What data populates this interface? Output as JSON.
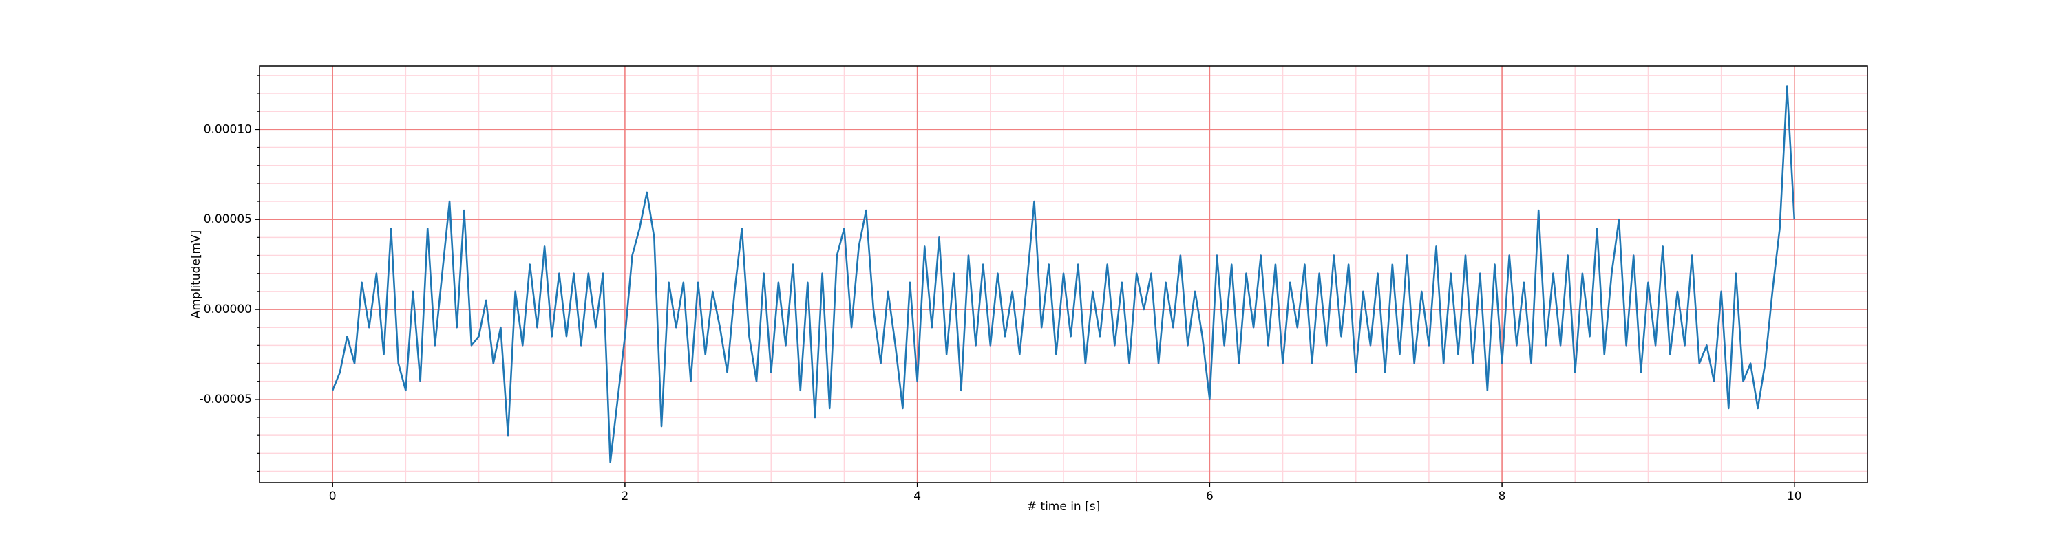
{
  "chart_data": {
    "type": "line",
    "xlabel": "# time in [s]",
    "ylabel": "Amplitude[mV]",
    "color": "#1f77b4",
    "grid": true,
    "grid_color": "#f08080",
    "minor_grid": true,
    "minor_grid_color": "#ffd6dd",
    "xlim": [
      -0.5,
      10.5
    ],
    "xticks": [
      0,
      2,
      4,
      6,
      8,
      10
    ],
    "xminorticks": [
      -0.5,
      0.5,
      1,
      1.5,
      2.5,
      3,
      3.5,
      4.5,
      5,
      5.5,
      6.5,
      7,
      7.5,
      8.5,
      9,
      9.5,
      10.5
    ],
    "ylim": [
      -9.63e-05,
      0.0001353
    ],
    "yticks": [
      {
        "value": -5e-05,
        "label": "-0.00005"
      },
      {
        "value": 0,
        "label": "0.00000"
      },
      {
        "value": 5e-05,
        "label": "0.00005"
      },
      {
        "value": 0.0001,
        "label": "0.00010"
      }
    ],
    "yminorticks": [
      -9e-05,
      -8e-05,
      -7e-05,
      -6e-05,
      -4e-05,
      -3e-05,
      -2e-05,
      -1e-05,
      1e-05,
      2e-05,
      3e-05,
      4e-05,
      6e-05,
      7e-05,
      8e-05,
      9e-05,
      0.00011,
      0.00012,
      0.00013
    ],
    "x": [
      0,
      0.05,
      0.1,
      0.15,
      0.2,
      0.25,
      0.3,
      0.35,
      0.4,
      0.45,
      0.5,
      0.55,
      0.6,
      0.65,
      0.7,
      0.75,
      0.8,
      0.85,
      0.9,
      0.95,
      1,
      1.05,
      1.1,
      1.15,
      1.2,
      1.25,
      1.3,
      1.35,
      1.4,
      1.45,
      1.5,
      1.55,
      1.6,
      1.65,
      1.7,
      1.75,
      1.8,
      1.85,
      1.9,
      1.95,
      2,
      2.05,
      2.1,
      2.15,
      2.2,
      2.25,
      2.3,
      2.35,
      2.4,
      2.45,
      2.5,
      2.55,
      2.6,
      2.65,
      2.7,
      2.75,
      2.8,
      2.85,
      2.9,
      2.95,
      3,
      3.05,
      3.1,
      3.15,
      3.2,
      3.25,
      3.3,
      3.35,
      3.4,
      3.45,
      3.5,
      3.55,
      3.6,
      3.65,
      3.7,
      3.75,
      3.8,
      3.85,
      3.9,
      3.95,
      4,
      4.05,
      4.1,
      4.15,
      4.2,
      4.25,
      4.3,
      4.35,
      4.4,
      4.45,
      4.5,
      4.55,
      4.6,
      4.65,
      4.7,
      4.75,
      4.8,
      4.85,
      4.9,
      4.95,
      5,
      5.05,
      5.1,
      5.15,
      5.2,
      5.25,
      5.3,
      5.35,
      5.4,
      5.45,
      5.5,
      5.55,
      5.6,
      5.65,
      5.7,
      5.75,
      5.8,
      5.85,
      5.9,
      5.95,
      6,
      6.05,
      6.1,
      6.15,
      6.2,
      6.25,
      6.3,
      6.35,
      6.4,
      6.45,
      6.5,
      6.55,
      6.6,
      6.65,
      6.7,
      6.75,
      6.8,
      6.85,
      6.9,
      6.95,
      7,
      7.05,
      7.1,
      7.15,
      7.2,
      7.25,
      7.3,
      7.35,
      7.4,
      7.45,
      7.5,
      7.55,
      7.6,
      7.65,
      7.7,
      7.75,
      7.8,
      7.85,
      7.9,
      7.95,
      8,
      8.05,
      8.1,
      8.15,
      8.2,
      8.25,
      8.3,
      8.35,
      8.4,
      8.45,
      8.5,
      8.55,
      8.6,
      8.65,
      8.7,
      8.75,
      8.8,
      8.85,
      8.9,
      8.95,
      9,
      9.05,
      9.1,
      9.15,
      9.2,
      9.25,
      9.3,
      9.35,
      9.4,
      9.45,
      9.5,
      9.55,
      9.6,
      9.65,
      9.7,
      9.75,
      9.8,
      9.85,
      9.9,
      9.95,
      10
    ],
    "values": [
      -4.5e-05,
      -3.5e-05,
      -1.5e-05,
      -3e-05,
      1.5e-05,
      -1e-05,
      2e-05,
      -2.5e-05,
      4.5e-05,
      -3e-05,
      -4.5e-05,
      1e-05,
      -4e-05,
      4.5e-05,
      -2e-05,
      2e-05,
      6e-05,
      -1e-05,
      5.5e-05,
      -2e-05,
      -1.5e-05,
      5e-06,
      -3e-05,
      -1e-05,
      -7e-05,
      1e-05,
      -2e-05,
      2.5e-05,
      -1e-05,
      3.5e-05,
      -1.5e-05,
      2e-05,
      -1.5e-05,
      2e-05,
      -2e-05,
      2e-05,
      -1e-05,
      2e-05,
      -8.5e-05,
      -5e-05,
      -1.5e-05,
      3e-05,
      4.5e-05,
      6.5e-05,
      4e-05,
      -6.5e-05,
      1.5e-05,
      -1e-05,
      1.5e-05,
      -4e-05,
      1.5e-05,
      -2.5e-05,
      1e-05,
      -1e-05,
      -3.5e-05,
      1e-05,
      4.5e-05,
      -1.5e-05,
      -4e-05,
      2e-05,
      -3.5e-05,
      1.5e-05,
      -2e-05,
      2.5e-05,
      -4.5e-05,
      1.5e-05,
      -6e-05,
      2e-05,
      -5.5e-05,
      3e-05,
      4.5e-05,
      -1e-05,
      3.5e-05,
      5.5e-05,
      0,
      -3e-05,
      1e-05,
      -2e-05,
      -5.5e-05,
      1.5e-05,
      -4e-05,
      3.5e-05,
      -1e-05,
      4e-05,
      -2.5e-05,
      2e-05,
      -4.5e-05,
      3e-05,
      -2e-05,
      2.5e-05,
      -2e-05,
      2e-05,
      -1.5e-05,
      1e-05,
      -2.5e-05,
      1.5e-05,
      6e-05,
      -1e-05,
      2.5e-05,
      -2.5e-05,
      2e-05,
      -1.5e-05,
      2.5e-05,
      -3e-05,
      1e-05,
      -1.5e-05,
      2.5e-05,
      -2e-05,
      1.5e-05,
      -3e-05,
      2e-05,
      0,
      2e-05,
      -3e-05,
      1.5e-05,
      -1e-05,
      3e-05,
      -2e-05,
      1e-05,
      -1.5e-05,
      -5e-05,
      3e-05,
      -2e-05,
      2.5e-05,
      -3e-05,
      2e-05,
      -1e-05,
      3e-05,
      -2e-05,
      2.5e-05,
      -3e-05,
      1.5e-05,
      -1e-05,
      2.5e-05,
      -3e-05,
      2e-05,
      -2e-05,
      3e-05,
      -1.5e-05,
      2.5e-05,
      -3.5e-05,
      1e-05,
      -2e-05,
      2e-05,
      -3.5e-05,
      2.5e-05,
      -2.5e-05,
      3e-05,
      -3e-05,
      1e-05,
      -2e-05,
      3.5e-05,
      -3e-05,
      2e-05,
      -2.5e-05,
      3e-05,
      -3e-05,
      2e-05,
      -4.5e-05,
      2.5e-05,
      -3e-05,
      3e-05,
      -2e-05,
      1.5e-05,
      -3e-05,
      5.5e-05,
      -2e-05,
      2e-05,
      -2e-05,
      3e-05,
      -3.5e-05,
      2e-05,
      -1.5e-05,
      4.5e-05,
      -2.5e-05,
      2e-05,
      5e-05,
      -2e-05,
      3e-05,
      -3.5e-05,
      1.5e-05,
      -2e-05,
      3.5e-05,
      -2.5e-05,
      1e-05,
      -2e-05,
      3e-05,
      -3e-05,
      -2e-05,
      -4e-05,
      1e-05,
      -5.5e-05,
      2e-05,
      -4e-05,
      -3e-05,
      -5.5e-05,
      -3e-05,
      1e-05,
      4.5e-05,
      0.000124,
      5e-05
    ]
  }
}
